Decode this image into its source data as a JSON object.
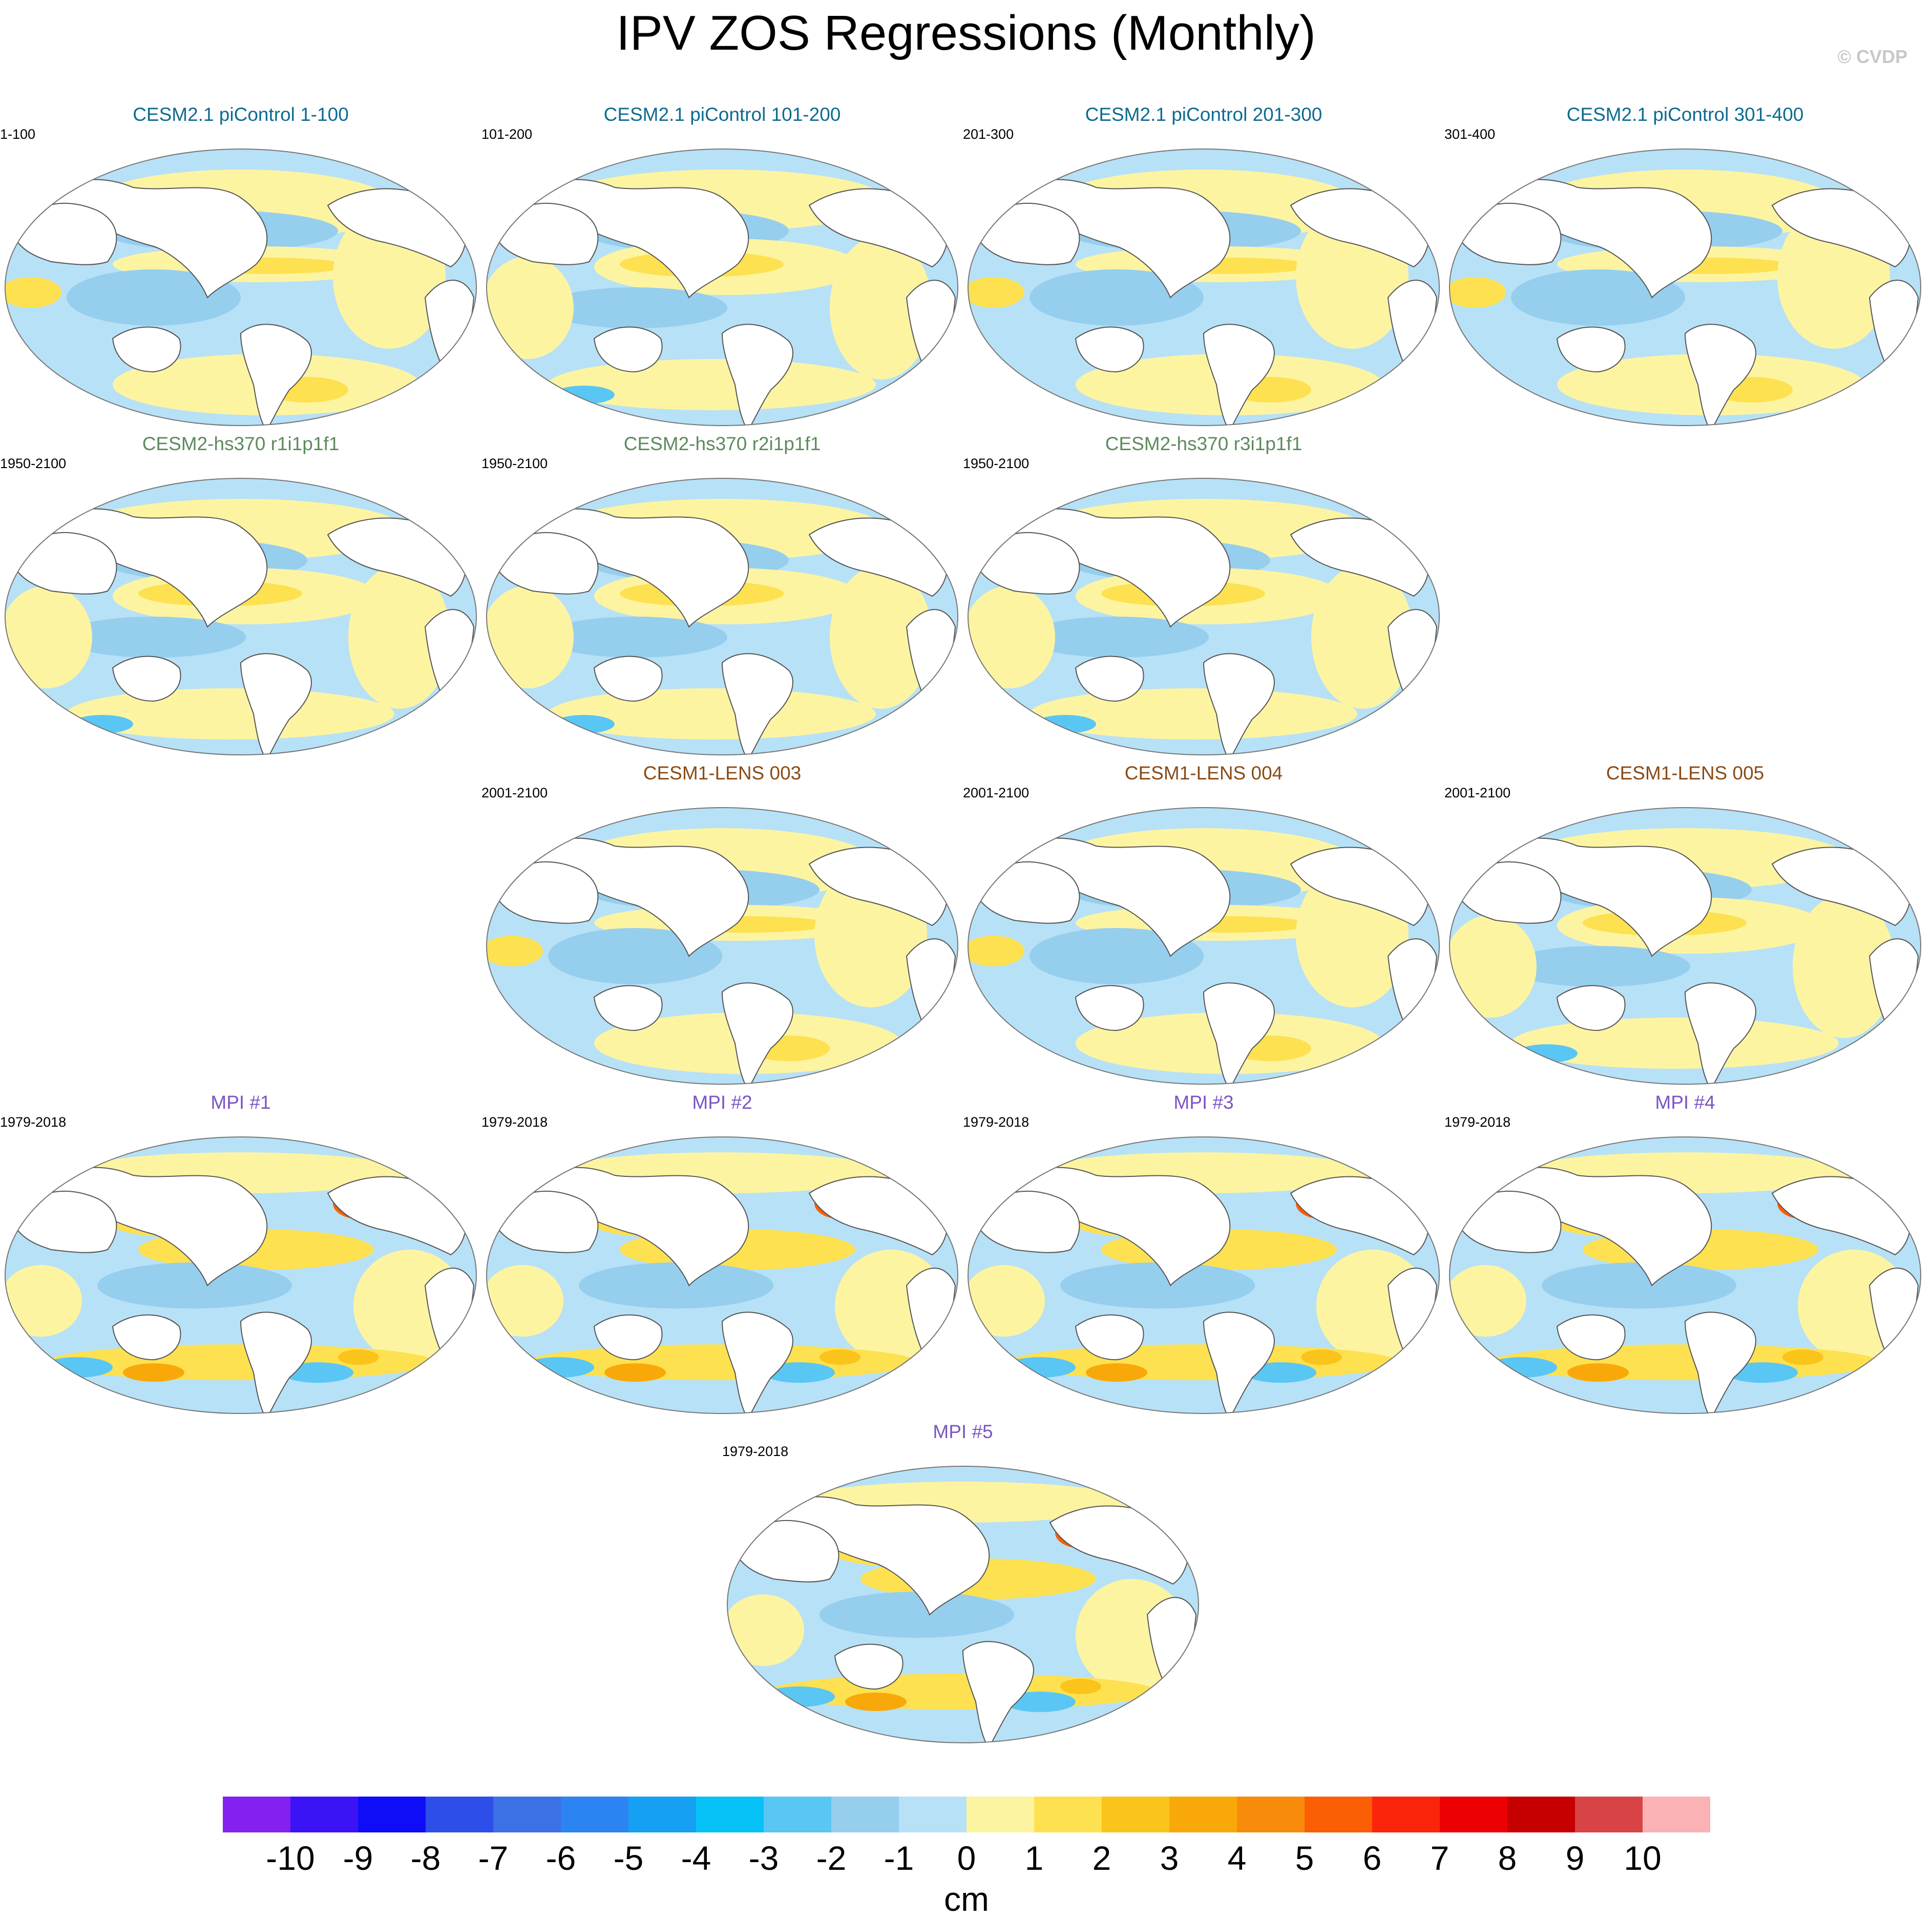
{
  "title": "IPV ZOS Regressions (Monthly)",
  "copyright": "© CVDP",
  "panels": [
    {
      "name": "cesm21-picontrol-1-100",
      "title": "CESM2.1 piControl 1-100",
      "years": "1-100",
      "color": "#0d6b8f",
      "style": "a"
    },
    {
      "name": "cesm21-picontrol-101-200",
      "title": "CESM2.1 piControl 101-200",
      "years": "101-200",
      "color": "#0d6b8f",
      "style": "b"
    },
    {
      "name": "cesm21-picontrol-201-300",
      "title": "CESM2.1 piControl 201-300",
      "years": "201-300",
      "color": "#0d6b8f",
      "style": "a"
    },
    {
      "name": "cesm21-picontrol-301-400",
      "title": "CESM2.1 piControl 301-400",
      "years": "301-400",
      "color": "#0d6b8f",
      "style": "a"
    },
    {
      "name": "cesm2-hs370-r1i1p1f1",
      "title": "CESM2-hs370 r1i1p1f1",
      "years": "1950-2100",
      "color": "#5d8a5d",
      "style": "b"
    },
    {
      "name": "cesm2-hs370-r2i1p1f1",
      "title": "CESM2-hs370 r2i1p1f1",
      "years": "1950-2100",
      "color": "#5d8a5d",
      "style": "b"
    },
    {
      "name": "cesm2-hs370-r3i1p1f1",
      "title": "CESM2-hs370 r3i1p1f1",
      "years": "1950-2100",
      "color": "#5d8a5d",
      "style": "b"
    },
    {
      "name": "cesm1-lens-003",
      "title": "CESM1-LENS 003",
      "years": "2001-2100",
      "color": "#8a4b16",
      "style": "a"
    },
    {
      "name": "cesm1-lens-004",
      "title": "CESM1-LENS 004",
      "years": "2001-2100",
      "color": "#8a4b16",
      "style": "a"
    },
    {
      "name": "cesm1-lens-005",
      "title": "CESM1-LENS 005",
      "years": "2001-2100",
      "color": "#8a4b16",
      "style": "b"
    },
    {
      "name": "mpi-1",
      "title": "MPI #1",
      "years": "1979-2018",
      "color": "#7b54c4",
      "style": "c"
    },
    {
      "name": "mpi-2",
      "title": "MPI #2",
      "years": "1979-2018",
      "color": "#7b54c4",
      "style": "c"
    },
    {
      "name": "mpi-3",
      "title": "MPI #3",
      "years": "1979-2018",
      "color": "#7b54c4",
      "style": "c"
    },
    {
      "name": "mpi-4",
      "title": "MPI #4",
      "years": "1979-2018",
      "color": "#7b54c4",
      "style": "c"
    },
    {
      "name": "mpi-5",
      "title": "MPI #5",
      "years": "1979-2018",
      "color": "#7b54c4",
      "style": "c"
    }
  ],
  "colorbar": {
    "colors": [
      "#8421f0",
      "#3c13f5",
      "#0f0cf7",
      "#2e4ee9",
      "#3c70e6",
      "#2b84f2",
      "#16a0f4",
      "#06c2f7",
      "#5ac6f4",
      "#96ceee",
      "#b7e1f6",
      "#fdf4a2",
      "#fde150",
      "#fbc41a",
      "#f8a909",
      "#f98b0a",
      "#fb5e05",
      "#fb250c",
      "#ec0004",
      "#c60000",
      "#d84446",
      "#fab2b5"
    ],
    "labels": [
      "-10",
      "-9",
      "-8",
      "-7",
      "-6",
      "-5",
      "-4",
      "-3",
      "-2",
      "-1",
      "0",
      "1",
      "2",
      "3",
      "4",
      "5",
      "6",
      "7",
      "8",
      "9",
      "10"
    ],
    "units": "cm"
  }
}
